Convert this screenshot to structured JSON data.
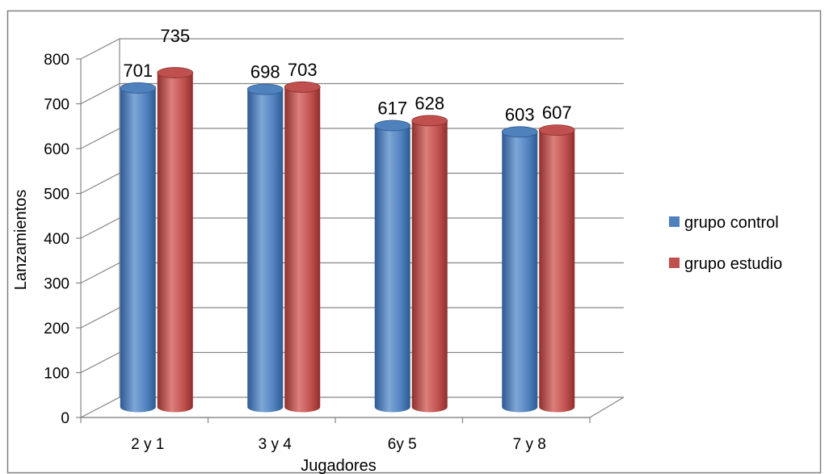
{
  "chart_data": {
    "type": "bar",
    "title": "",
    "xlabel": "Jugadores",
    "ylabel": "Lanzamientos",
    "categories": [
      "2 y 1",
      "3 y 4",
      "6y 5",
      "7 y 8"
    ],
    "series": [
      {
        "name": "grupo control",
        "values": [
          701,
          698,
          617,
          603
        ]
      },
      {
        "name": "grupo estudio",
        "values": [
          735,
          703,
          628,
          607
        ]
      }
    ],
    "ylim": [
      0,
      800
    ],
    "yticks": [
      "0",
      "100",
      "200",
      "300",
      "400",
      "500",
      "600",
      "700",
      "800"
    ],
    "grid": true,
    "legend": "right",
    "colors": {
      "series": [
        "#4f81bd",
        "#c0504d"
      ],
      "series_dark": [
        "#2c5a92",
        "#8e2f2c"
      ],
      "series_light": [
        "#7fa6d8",
        "#dc7f7c"
      ],
      "grid": "#868686",
      "border": "#808080"
    }
  }
}
